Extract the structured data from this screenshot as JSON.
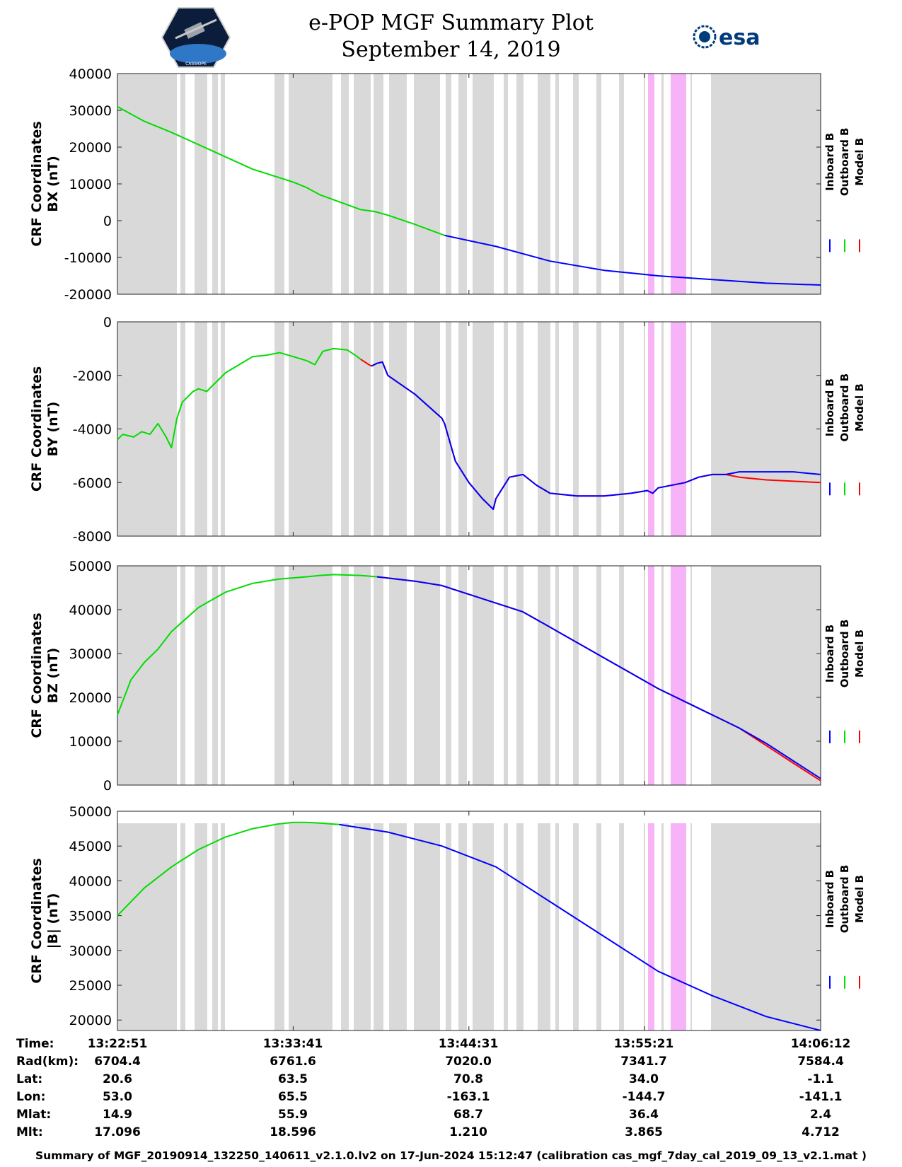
{
  "header": {
    "title": "e-POP MGF Summary Plot",
    "date": "September 14, 2019",
    "left_logo": "cassiope-satellite-logo",
    "left_logo_text": "CASSIOPE",
    "right_logo": "esa-logo",
    "right_logo_text": "esa"
  },
  "colors": {
    "inboard": "#0000ff",
    "outboard": "#00dd00",
    "model": "#ff0000",
    "gap_bands": "#d9d9d9",
    "pink_bands": "#f7b3f7"
  },
  "legend": [
    "Inboard B",
    "Outboard B",
    "Model B"
  ],
  "chart_data": [
    {
      "type": "line",
      "ylabel": [
        "CRF Coordinates",
        "BX (nT)"
      ],
      "ylim": [
        -20000,
        40000
      ],
      "yticks": [
        -20000,
        -10000,
        0,
        10000,
        20000,
        30000,
        40000
      ],
      "xlim": [
        0,
        2601
      ],
      "grid": false,
      "series": [
        {
          "name": "Outboard B",
          "color": "outboard",
          "x": [
            0,
            50,
            100,
            200,
            350,
            500,
            650,
            700,
            750,
            900,
            950,
            1000,
            1100,
            1210
          ],
          "y": [
            31000,
            29000,
            27000,
            24000,
            19000,
            14000,
            10500,
            9000,
            7000,
            3000,
            2500,
            1500,
            -1000,
            -4000
          ]
        },
        {
          "name": "Inboard B",
          "color": "inboard",
          "x": [
            1210,
            1400,
            1600,
            1800,
            2000,
            2200,
            2400,
            2601
          ],
          "y": [
            -4000,
            -7000,
            -11000,
            -13500,
            -15000,
            -16000,
            -17000,
            -17500
          ]
        }
      ]
    },
    {
      "type": "line",
      "ylabel": [
        "CRF Coordinates",
        "BY (nT)"
      ],
      "ylim": [
        -8000,
        0
      ],
      "yticks": [
        -8000,
        -6000,
        -4000,
        -2000,
        0
      ],
      "xlim": [
        0,
        2601
      ],
      "grid": false,
      "series": [
        {
          "name": "Outboard B",
          "color": "outboard",
          "x": [
            0,
            20,
            60,
            90,
            120,
            150,
            180,
            200,
            220,
            240,
            280,
            300,
            330,
            400,
            450,
            500,
            550,
            600,
            650,
            700,
            730,
            760,
            800,
            850,
            880,
            900
          ],
          "y": [
            -4400,
            -4200,
            -4300,
            -4100,
            -4200,
            -3800,
            -4300,
            -4700,
            -3600,
            -3000,
            -2600,
            -2500,
            -2600,
            -1900,
            -1600,
            -1300,
            -1250,
            -1150,
            -1300,
            -1450,
            -1600,
            -1100,
            -1000,
            -1050,
            -1250,
            -1400
          ]
        },
        {
          "name": "Model B",
          "color": "model",
          "x": [
            900,
            930,
            940,
            960,
            980,
            1000,
            1100,
            1200,
            1210,
            1250,
            1300,
            1350,
            1390,
            1400,
            1450,
            1500,
            1550,
            1600,
            1700,
            1800,
            1900,
            1960,
            1980,
            2000,
            2100,
            2150,
            2200,
            2250,
            2300,
            2400,
            2500,
            2601
          ],
          "y": [
            -1400,
            -1600,
            -1650,
            -1550,
            -1500,
            -2000,
            -2700,
            -3600,
            -3800,
            -5200,
            -6000,
            -6600,
            -7000,
            -6600,
            -5800,
            -5700,
            -6100,
            -6400,
            -6500,
            -6500,
            -6400,
            -6300,
            -6400,
            -6200,
            -6000,
            -5800,
            -5700,
            -5700,
            -5800,
            -5900,
            -5950,
            -6000
          ]
        },
        {
          "name": "Inboard B",
          "color": "inboard",
          "x": [
            940,
            960,
            980,
            1000,
            1100,
            1200,
            1210,
            1250,
            1300,
            1350,
            1390,
            1400,
            1450,
            1500,
            1550,
            1600,
            1700,
            1800,
            1900,
            1960,
            1980,
            2000,
            2100,
            2150,
            2200,
            2250,
            2300,
            2400,
            2500,
            2601
          ],
          "y": [
            -1650,
            -1550,
            -1500,
            -2000,
            -2700,
            -3600,
            -3800,
            -5200,
            -6000,
            -6600,
            -7000,
            -6600,
            -5800,
            -5700,
            -6100,
            -6400,
            -6500,
            -6500,
            -6400,
            -6300,
            -6400,
            -6200,
            -6000,
            -5800,
            -5700,
            -5700,
            -5600,
            -5600,
            -5600,
            -5700
          ]
        }
      ]
    },
    {
      "type": "line",
      "ylabel": [
        "CRF Coordinates",
        "BZ (nT)"
      ],
      "ylim": [
        0,
        50000
      ],
      "yticks": [
        0,
        10000,
        20000,
        30000,
        40000,
        50000
      ],
      "xlim": [
        0,
        2601
      ],
      "grid": false,
      "series": [
        {
          "name": "Outboard B",
          "color": "outboard",
          "x": [
            0,
            50,
            100,
            150,
            200,
            300,
            400,
            500,
            600,
            700,
            750,
            800,
            900,
            960
          ],
          "y": [
            16000,
            24000,
            28000,
            31000,
            35000,
            40500,
            44000,
            46000,
            47000,
            47500,
            47800,
            48000,
            47800,
            47500
          ]
        },
        {
          "name": "Model B",
          "color": "model",
          "x": [
            960,
            1100,
            1200,
            1300,
            1400,
            1500,
            1600,
            1700,
            1800,
            1900,
            2000,
            2100,
            2200,
            2300,
            2400,
            2500,
            2601
          ],
          "y": [
            47500,
            46500,
            45500,
            43500,
            41500,
            39500,
            36000,
            32500,
            29000,
            25500,
            22000,
            19000,
            16000,
            13000,
            9000,
            5000,
            1000
          ]
        },
        {
          "name": "Inboard B",
          "color": "inboard",
          "x": [
            960,
            1100,
            1200,
            1300,
            1400,
            1500,
            1600,
            1700,
            1800,
            1900,
            2000,
            2100,
            2200,
            2300,
            2400,
            2500,
            2601
          ],
          "y": [
            47500,
            46500,
            45500,
            43500,
            41500,
            39500,
            36000,
            32500,
            29000,
            25500,
            22000,
            19000,
            16000,
            13000,
            9500,
            5500,
            1500
          ]
        }
      ]
    },
    {
      "type": "line",
      "ylabel": [
        "CRF Coordinates",
        "|B| (nT)"
      ],
      "ylim": [
        18500,
        50000
      ],
      "yticks": [
        20000,
        25000,
        30000,
        35000,
        40000,
        45000,
        50000
      ],
      "xlim": [
        0,
        2601
      ],
      "grid": false,
      "series": [
        {
          "name": "Outboard B",
          "color": "outboard",
          "x": [
            0,
            100,
            200,
            300,
            400,
            500,
            600,
            650,
            700,
            750,
            820
          ],
          "y": [
            35000,
            39000,
            42000,
            44500,
            46300,
            47500,
            48200,
            48400,
            48400,
            48300,
            48100
          ]
        },
        {
          "name": "Inboard B",
          "color": "inboard",
          "x": [
            820,
            1000,
            1200,
            1400,
            1600,
            1800,
            2000,
            2200,
            2400,
            2601
          ],
          "y": [
            48100,
            47000,
            45000,
            42000,
            37000,
            32000,
            27000,
            23500,
            20500,
            18500
          ]
        }
      ]
    }
  ],
  "time_axis": {
    "ticks": [
      0,
      650,
      1300,
      1950,
      2601
    ]
  },
  "info_table": {
    "rows": [
      {
        "label": "Time:",
        "values": [
          "13:22:51",
          "13:33:41",
          "13:44:31",
          "13:55:21",
          "14:06:12"
        ]
      },
      {
        "label": "Rad(km):",
        "values": [
          "6704.4",
          "6761.6",
          "7020.0",
          "7341.7",
          "7584.4"
        ]
      },
      {
        "label": "Lat:",
        "values": [
          "20.6",
          "63.5",
          "70.8",
          "34.0",
          "-1.1"
        ]
      },
      {
        "label": "Lon:",
        "values": [
          "53.0",
          "65.5",
          "-163.1",
          "-144.7",
          "-141.1"
        ]
      },
      {
        "label": "Mlat:",
        "values": [
          "14.9",
          "55.9",
          "68.7",
          "36.4",
          "2.4"
        ]
      },
      {
        "label": "Mlt:",
        "values": [
          "17.096",
          "18.596",
          "1.210",
          "3.865",
          "4.712"
        ]
      }
    ]
  },
  "footer": "Summary of MGF_20190914_132250_140611_v2.1.0.lv2 on 17-Jun-2024 15:12:47 (calibration cas_mgf_7day_cal_2019_09_13_v2.1.mat )"
}
